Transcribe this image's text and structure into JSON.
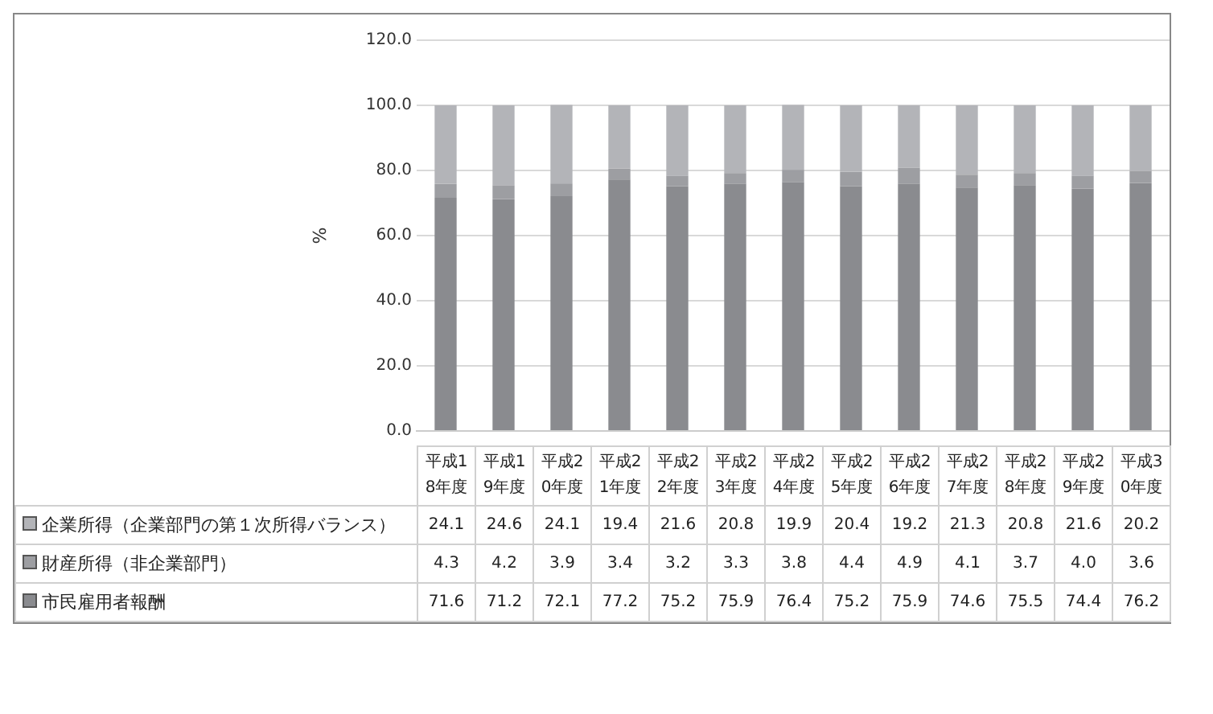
{
  "chart_data": {
    "type": "bar",
    "stacked": true,
    "ylabel": "%",
    "categories": [
      "平成18年度",
      "平成19年度",
      "平成20年度",
      "平成21年度",
      "平成22年度",
      "平成23年度",
      "平成24年度",
      "平成25年度",
      "平成26年度",
      "平成27年度",
      "平成28年度",
      "平成29年度",
      "平成30年度"
    ],
    "series": [
      {
        "name": "市民雇用者報酬",
        "color": "#8a8b8f",
        "values": [
          71.6,
          71.2,
          72.1,
          77.2,
          75.2,
          75.9,
          76.4,
          75.2,
          75.9,
          74.6,
          75.5,
          74.4,
          76.2
        ],
        "value_labels": [
          "71.6",
          "71.2",
          "72.1",
          "77.2",
          "75.2",
          "75.9",
          "76.4",
          "75.2",
          "75.9",
          "74.6",
          "75.5",
          "74.4",
          "76.2"
        ]
      },
      {
        "name": "財産所得（非企業部門）",
        "color": "#9d9ea2",
        "values": [
          4.3,
          4.2,
          3.9,
          3.4,
          3.2,
          3.3,
          3.8,
          4.4,
          4.9,
          4.1,
          3.7,
          4.0,
          3.6
        ],
        "value_labels": [
          "4.3",
          "4.2",
          "3.9",
          "3.4",
          "3.2",
          "3.3",
          "3.8",
          "4.4",
          "4.9",
          "4.1",
          "3.7",
          "4.0",
          "3.6"
        ]
      },
      {
        "name": "企業所得（企業部門の第１次所得バランス）",
        "color": "#b3b4b8",
        "values": [
          24.1,
          24.6,
          24.1,
          19.4,
          21.6,
          20.8,
          19.9,
          20.4,
          19.2,
          21.3,
          20.8,
          21.6,
          20.2
        ],
        "value_labels": [
          "24.1",
          "24.6",
          "24.1",
          "19.4",
          "21.6",
          "20.8",
          "19.9",
          "20.4",
          "19.2",
          "21.3",
          "20.8",
          "21.6",
          "20.2"
        ]
      }
    ],
    "ylim": [
      0,
      120
    ],
    "yticks": [
      {
        "value": 0,
        "label": "0.0"
      },
      {
        "value": 20,
        "label": "20.0"
      },
      {
        "value": 40,
        "label": "40.0"
      },
      {
        "value": 60,
        "label": "60.0"
      },
      {
        "value": 80,
        "label": "80.0"
      },
      {
        "value": 100,
        "label": "100.0"
      },
      {
        "value": 120,
        "label": "120.0"
      }
    ],
    "grid": "y",
    "legend": "bottom"
  }
}
